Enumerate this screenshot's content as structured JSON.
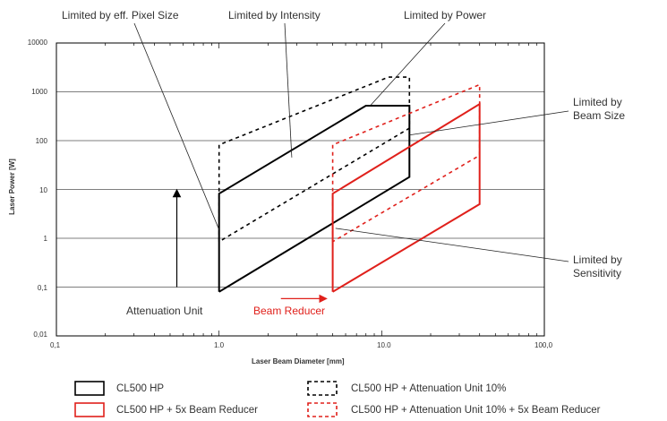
{
  "chart_data": {
    "type": "area",
    "xlabel": "Laser Beam Diameter [mm]",
    "ylabel": "Laser Power [W]",
    "x_scale": "log",
    "y_scale": "log",
    "xlim": [
      0.1,
      100.0
    ],
    "ylim": [
      0.01,
      10000
    ],
    "grid": "horizontal",
    "x_ticks": [
      "0,1",
      "1.0",
      "10.0",
      "100,0"
    ],
    "y_ticks": [
      "0,01",
      "0,1",
      "1",
      "10",
      "100",
      "1000",
      "10000"
    ],
    "series": [
      {
        "name": "CL500 HP",
        "style": "solid",
        "color": "#000000",
        "points": [
          [
            1.0,
            0.08
          ],
          [
            1.0,
            8.2
          ],
          [
            8.0,
            520
          ],
          [
            14.8,
            520
          ],
          [
            14.8,
            18
          ],
          [
            1.0,
            0.08
          ]
        ]
      },
      {
        "name": "CL500 HP + 5x Beam Reducer",
        "style": "solid",
        "color": "#e0201b",
        "points": [
          [
            5.0,
            0.08
          ],
          [
            5.0,
            8.2
          ],
          [
            40.0,
            560
          ],
          [
            40.0,
            5.0
          ],
          [
            5.0,
            0.08
          ]
        ]
      },
      {
        "name": "CL500 HP + Attenuation Unit 10%",
        "style": "dashed",
        "color": "#000000",
        "points": [
          [
            1.0,
            0.85
          ],
          [
            1.0,
            82
          ],
          [
            11.0,
            2000
          ],
          [
            14.8,
            2000
          ],
          [
            14.8,
            180
          ],
          [
            1.0,
            0.85
          ]
        ]
      },
      {
        "name": "CL500 HP + Attenuation Unit 10% + 5x Beam Reducer",
        "style": "dashed",
        "color": "#e0201b",
        "points": [
          [
            5.0,
            0.85
          ],
          [
            5.0,
            82
          ],
          [
            40.0,
            1400
          ],
          [
            40.0,
            50
          ],
          [
            5.0,
            0.85
          ]
        ]
      }
    ],
    "annotations": [
      {
        "text": "Limited by eff. Pixel Size",
        "points_to": [
          1.0,
          1.5
        ]
      },
      {
        "text": "Limited by Intensity",
        "points_to": [
          2.8,
          45
        ]
      },
      {
        "text": "Limited by Power",
        "points_to": [
          8.5,
          520
        ]
      },
      {
        "text": "Limited by\nBeam Size",
        "points_to": [
          14.8,
          130
        ]
      },
      {
        "text": "Limited by\nSensitivity",
        "points_to": [
          5.2,
          1.6
        ]
      },
      {
        "text": "Attenuation Unit",
        "arrow": "up",
        "arrow_from": [
          0.55,
          0.1
        ],
        "arrow_to": [
          0.55,
          10
        ]
      },
      {
        "text": "Beam Reducer",
        "arrow": "right",
        "color": "#e0201b",
        "arrow_from": [
          2.4,
          0.058
        ],
        "arrow_to": [
          4.6,
          0.058
        ]
      }
    ]
  },
  "annotations_text": {
    "pixel_size": "Limited by eff. Pixel Size",
    "intensity": "Limited by Intensity",
    "power": "Limited by Power",
    "beam_size_1": "Limited by",
    "beam_size_2": "Beam Size",
    "sensitivity_1": "Limited by",
    "sensitivity_2": "Sensitivity",
    "attenuation_unit": "Attenuation Unit",
    "beam_reducer": "Beam Reducer"
  },
  "legend": [
    {
      "label": "CL500 HP",
      "style": "solid",
      "color": "#000000"
    },
    {
      "label": "CL500 HP + 5x Beam Reducer",
      "style": "solid",
      "color": "#e0201b"
    },
    {
      "label": "CL500 HP + Attenuation Unit 10%",
      "style": "dashed",
      "color": "#000000"
    },
    {
      "label": "CL500 HP + Attenuation Unit 10% + 5x Beam Reducer",
      "style": "dashed",
      "color": "#e0201b"
    }
  ],
  "colors": {
    "accent_red": "#e0201b",
    "black": "#000000",
    "grid": "#555555"
  }
}
